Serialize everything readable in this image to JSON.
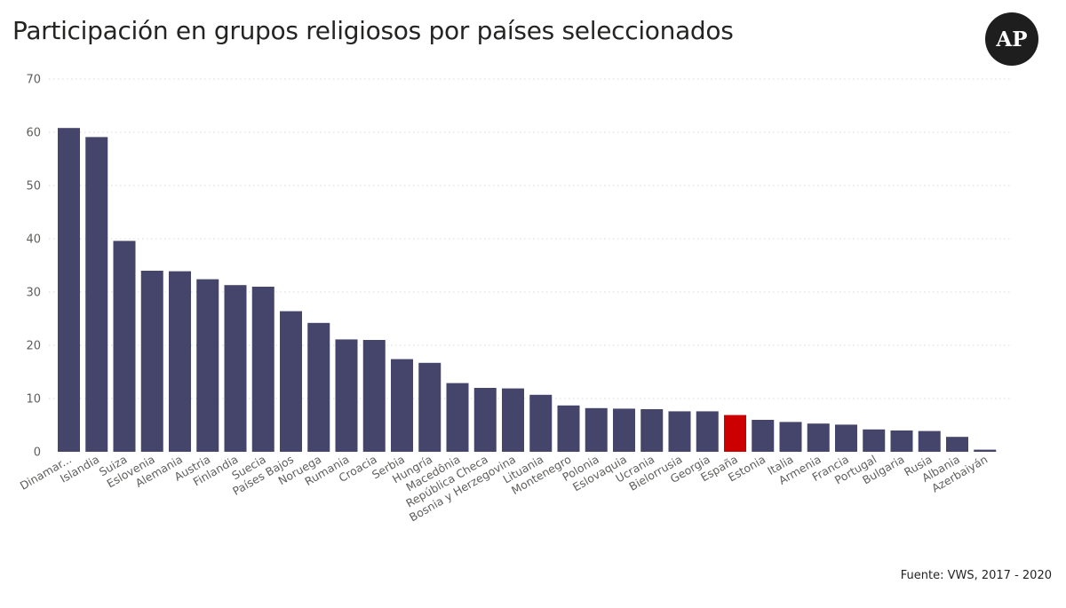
{
  "title": "Participación en grupos religiosos por países seleccionados",
  "logo_text": "AP",
  "source": "Fuente: VWS, 2017 - 2020",
  "colors": {
    "bar": "#45456b",
    "highlight": "#cc0000"
  },
  "chart_data": {
    "type": "bar",
    "title": "Participación en grupos religiosos por países seleccionados",
    "xlabel": "",
    "ylabel": "",
    "ylim": [
      0,
      70
    ],
    "yticks": [
      0,
      10,
      20,
      30,
      40,
      50,
      60,
      70
    ],
    "grid": true,
    "highlight": "España",
    "categories": [
      "Dinamar...",
      "Islandia",
      "Suiza",
      "Eslovenia",
      "Alemania",
      "Austria",
      "Finlandia",
      "Suecia",
      "Países Bajos",
      "Noruega",
      "Rumania",
      "Croacia",
      "Serbia",
      "Hungría",
      "Macedônia",
      "República Checa",
      "Bosnia y Herzegovina",
      "Lituania",
      "Montenegro",
      "Polonia",
      "Eslovaquia",
      "Ucrania",
      "Bielorrusia",
      "Georgia",
      "España",
      "Estonia",
      "Italia",
      "Armenia",
      "Francia",
      "Portugal",
      "Bulgaria",
      "Rusia",
      "Albania",
      "Azerbaiyán"
    ],
    "values": [
      60.8,
      59.1,
      39.6,
      34.0,
      33.9,
      32.4,
      31.3,
      31.0,
      26.4,
      24.2,
      21.1,
      21.0,
      17.4,
      16.7,
      12.9,
      12.0,
      11.9,
      10.7,
      8.7,
      8.2,
      8.1,
      8.0,
      7.6,
      7.6,
      6.9,
      6.0,
      5.6,
      5.3,
      5.1,
      4.2,
      4.0,
      3.9,
      2.8,
      0.4
    ]
  }
}
